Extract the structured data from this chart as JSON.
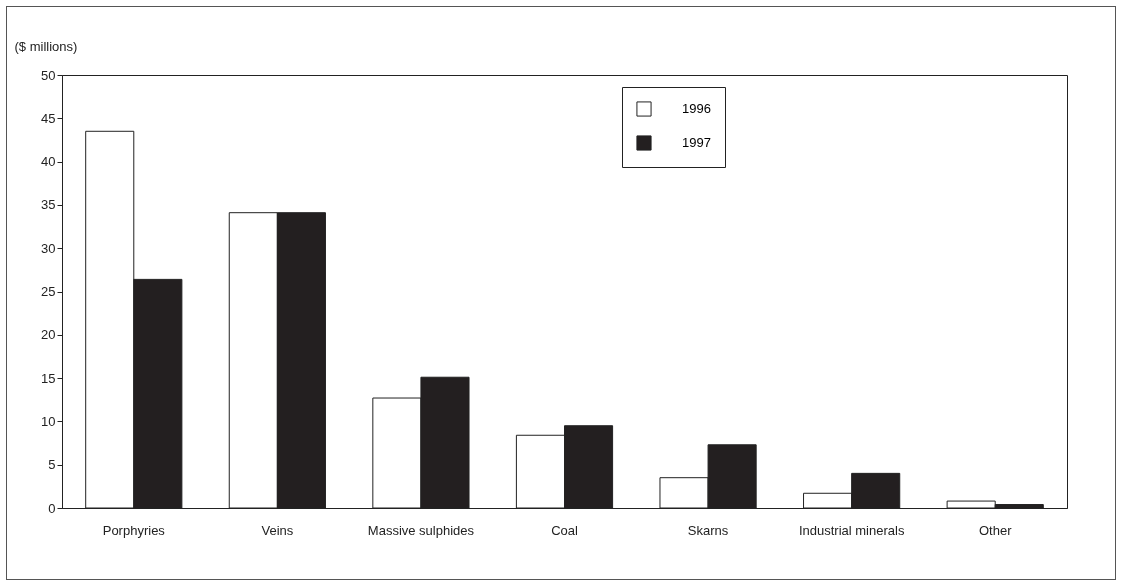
{
  "chart_data": {
    "type": "bar",
    "ylabel": "($ millions)",
    "categories": [
      "Porphyries",
      "Veins",
      "Massive sulphides",
      "Coal",
      "Skarns",
      "Industrial minerals",
      "Other"
    ],
    "series": [
      {
        "name": "1996",
        "color": "#ffffff",
        "values": [
          43.5,
          34.1,
          12.7,
          8.4,
          3.5,
          1.7,
          0.8
        ]
      },
      {
        "name": "1997",
        "color": "#231f20",
        "values": [
          26.4,
          34.1,
          15.1,
          9.5,
          7.3,
          4.0,
          0.4
        ]
      }
    ],
    "ylim": [
      0,
      50
    ],
    "yticks": [
      0,
      5,
      10,
      15,
      20,
      25,
      30,
      35,
      40,
      45,
      50
    ],
    "grid": false,
    "legend": "top right"
  }
}
